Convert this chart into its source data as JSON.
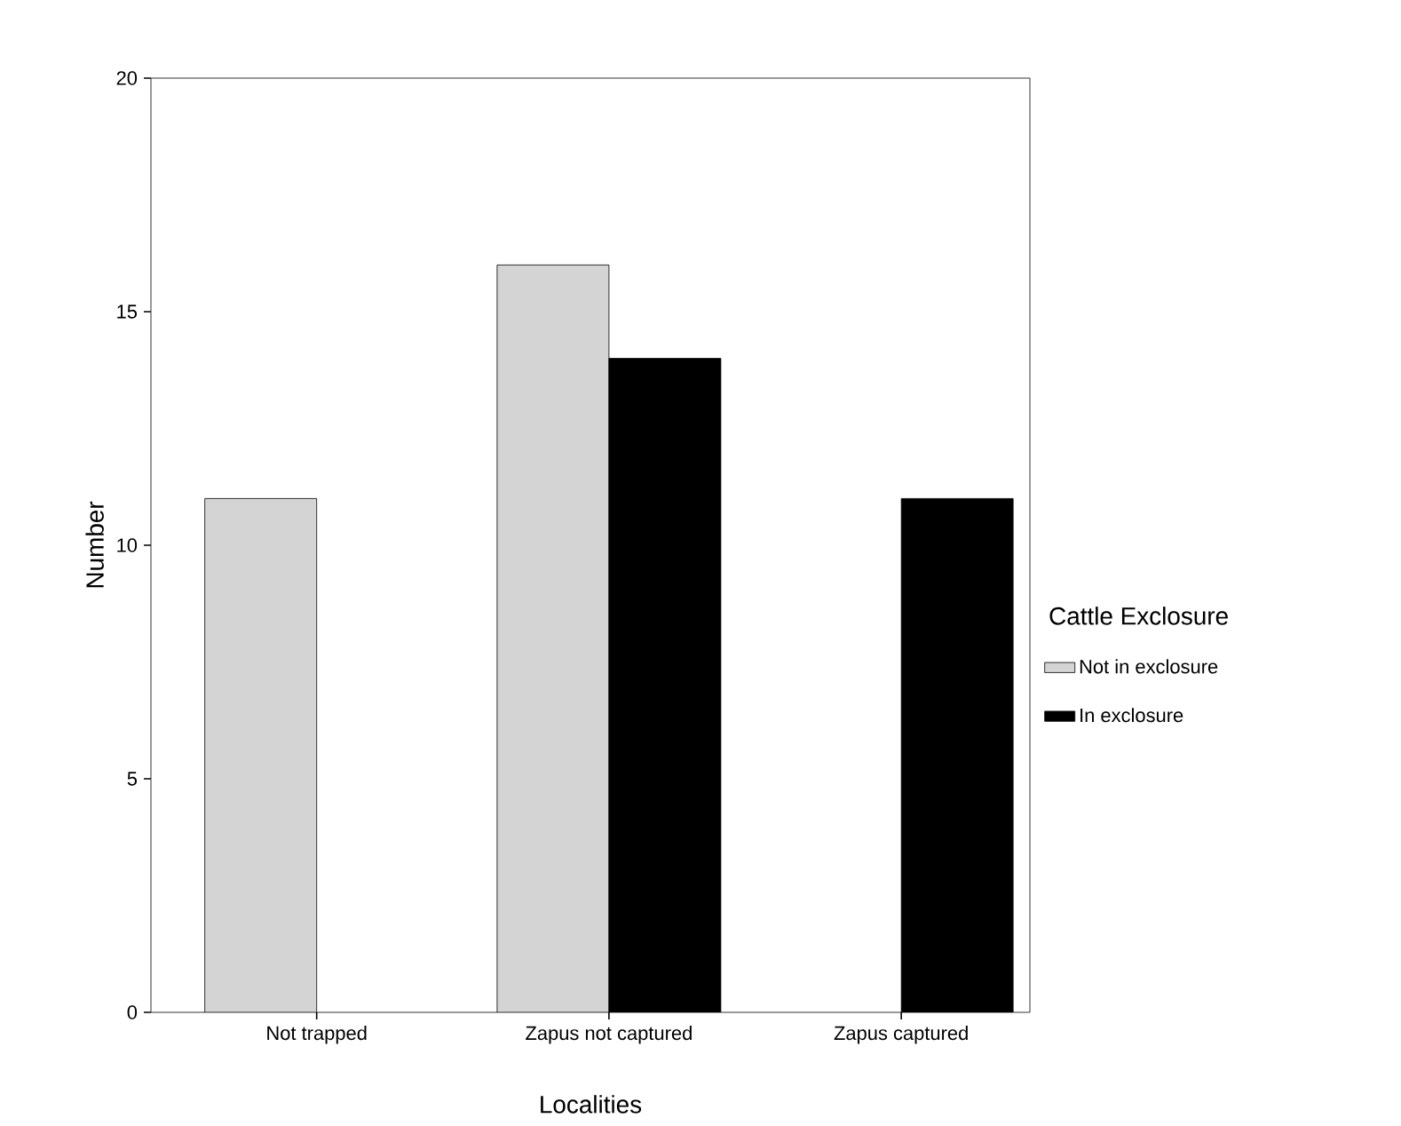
{
  "chart_data": {
    "type": "bar",
    "xlabel": "Localities",
    "ylabel": "Number",
    "legend_title": "Cattle Exclosure",
    "categories": [
      "Not trapped",
      "Zapus not captured",
      "Zapus captured"
    ],
    "series": [
      {
        "name": "Not in exclosure",
        "color": "#d4d4d4",
        "values": [
          11,
          16,
          null
        ]
      },
      {
        "name": "In exclosure",
        "color": "#000000",
        "values": [
          null,
          14,
          11
        ]
      }
    ],
    "ylim": [
      0,
      20
    ],
    "yticks": [
      0,
      5,
      10,
      15,
      20
    ],
    "legend": "right"
  }
}
